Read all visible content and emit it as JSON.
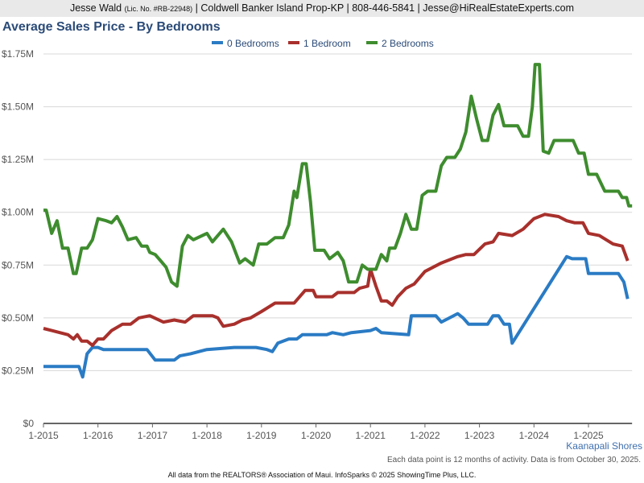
{
  "header": {
    "name": "Jesse Wald",
    "license": "(Lic. No. #RB-22948)",
    "rest": "| Coldwell Banker Island Prop-KP | 808-446-5841 | Jesse@HiRealEstateExperts.com"
  },
  "area_label": "Kaanapali Shores",
  "note": "Each data point is 12 months of activity. Data is from October 30, 2025.",
  "footer": "All data from the REALTORS® Association of Maui. InfoSparks © 2025 ShowingTime Plus, LLC.",
  "chart_data": {
    "type": "line",
    "title": "Average Sales Price - By Bedrooms",
    "xlabel": "",
    "ylabel": "",
    "xlim": [
      2015,
      2025.8
    ],
    "ylim": [
      0,
      1.75
    ],
    "grid": true,
    "legend_placement": "top-center",
    "x_ticks": [
      {
        "v": 2015,
        "label": "1-2015"
      },
      {
        "v": 2016,
        "label": "1-2016"
      },
      {
        "v": 2017,
        "label": "1-2017"
      },
      {
        "v": 2018,
        "label": "1-2018"
      },
      {
        "v": 2019,
        "label": "1-2019"
      },
      {
        "v": 2020,
        "label": "1-2020"
      },
      {
        "v": 2021,
        "label": "1-2021"
      },
      {
        "v": 2022,
        "label": "1-2022"
      },
      {
        "v": 2023,
        "label": "1-2023"
      },
      {
        "v": 2024,
        "label": "1-2024"
      },
      {
        "v": 2025,
        "label": "1-2025"
      }
    ],
    "y_ticks": [
      {
        "v": 0,
        "label": "$0"
      },
      {
        "v": 0.25,
        "label": "$0.25M"
      },
      {
        "v": 0.5,
        "label": "$0.50M"
      },
      {
        "v": 0.75,
        "label": "$0.75M"
      },
      {
        "v": 1.0,
        "label": "$1.00M"
      },
      {
        "v": 1.25,
        "label": "$1.25M"
      },
      {
        "v": 1.5,
        "label": "$1.50M"
      },
      {
        "v": 1.75,
        "label": "$1.75M"
      }
    ],
    "series": [
      {
        "name": "0 Bedrooms",
        "color": "#2a7bc4",
        "points": [
          [
            2015,
            0.27
          ],
          [
            2015.65,
            0.27
          ],
          [
            2015.72,
            0.22
          ],
          [
            2015.8,
            0.33
          ],
          [
            2015.9,
            0.36
          ],
          [
            2016.0,
            0.36
          ],
          [
            2016.1,
            0.35
          ],
          [
            2016.9,
            0.35
          ],
          [
            2017.05,
            0.3
          ],
          [
            2017.4,
            0.3
          ],
          [
            2017.5,
            0.32
          ],
          [
            2017.7,
            0.33
          ],
          [
            2018.0,
            0.35
          ],
          [
            2018.5,
            0.36
          ],
          [
            2018.9,
            0.36
          ],
          [
            2019.1,
            0.35
          ],
          [
            2019.2,
            0.34
          ],
          [
            2019.3,
            0.38
          ],
          [
            2019.5,
            0.4
          ],
          [
            2019.65,
            0.4
          ],
          [
            2019.75,
            0.42
          ],
          [
            2020.2,
            0.42
          ],
          [
            2020.3,
            0.43
          ],
          [
            2020.5,
            0.42
          ],
          [
            2020.65,
            0.43
          ],
          [
            2021.0,
            0.44
          ],
          [
            2021.1,
            0.45
          ],
          [
            2021.2,
            0.43
          ],
          [
            2021.7,
            0.42
          ],
          [
            2021.75,
            0.51
          ],
          [
            2022.2,
            0.51
          ],
          [
            2022.3,
            0.48
          ],
          [
            2022.45,
            0.5
          ],
          [
            2022.6,
            0.52
          ],
          [
            2022.7,
            0.5
          ],
          [
            2022.8,
            0.47
          ],
          [
            2023.15,
            0.47
          ],
          [
            2023.25,
            0.51
          ],
          [
            2023.35,
            0.51
          ],
          [
            2023.45,
            0.47
          ],
          [
            2023.55,
            0.47
          ],
          [
            2023.6,
            0.38
          ],
          [
            2024.6,
            0.79
          ],
          [
            2024.7,
            0.78
          ],
          [
            2024.95,
            0.78
          ],
          [
            2025.0,
            0.71
          ],
          [
            2025.55,
            0.71
          ],
          [
            2025.65,
            0.67
          ],
          [
            2025.72,
            0.59
          ]
        ]
      },
      {
        "name": "1 Bedroom",
        "color": "#a8302c",
        "points": [
          [
            2015,
            0.45
          ],
          [
            2015.15,
            0.44
          ],
          [
            2015.3,
            0.43
          ],
          [
            2015.45,
            0.42
          ],
          [
            2015.55,
            0.4
          ],
          [
            2015.62,
            0.42
          ],
          [
            2015.7,
            0.39
          ],
          [
            2015.8,
            0.39
          ],
          [
            2015.9,
            0.37
          ],
          [
            2016.0,
            0.4
          ],
          [
            2016.1,
            0.4
          ],
          [
            2016.25,
            0.44
          ],
          [
            2016.45,
            0.47
          ],
          [
            2016.6,
            0.47
          ],
          [
            2016.75,
            0.5
          ],
          [
            2016.95,
            0.51
          ],
          [
            2017.2,
            0.48
          ],
          [
            2017.4,
            0.49
          ],
          [
            2017.6,
            0.48
          ],
          [
            2017.75,
            0.51
          ],
          [
            2018.1,
            0.51
          ],
          [
            2018.2,
            0.5
          ],
          [
            2018.3,
            0.46
          ],
          [
            2018.5,
            0.47
          ],
          [
            2018.65,
            0.49
          ],
          [
            2018.8,
            0.5
          ],
          [
            2019.0,
            0.53
          ],
          [
            2019.25,
            0.57
          ],
          [
            2019.6,
            0.57
          ],
          [
            2019.8,
            0.63
          ],
          [
            2019.95,
            0.63
          ],
          [
            2020.0,
            0.6
          ],
          [
            2020.3,
            0.6
          ],
          [
            2020.4,
            0.62
          ],
          [
            2020.7,
            0.62
          ],
          [
            2020.8,
            0.64
          ],
          [
            2020.95,
            0.65
          ],
          [
            2021.0,
            0.73
          ],
          [
            2021.1,
            0.65
          ],
          [
            2021.2,
            0.58
          ],
          [
            2021.3,
            0.58
          ],
          [
            2021.4,
            0.56
          ],
          [
            2021.5,
            0.6
          ],
          [
            2021.65,
            0.64
          ],
          [
            2021.8,
            0.66
          ],
          [
            2022.0,
            0.72
          ],
          [
            2022.3,
            0.76
          ],
          [
            2022.6,
            0.79
          ],
          [
            2022.75,
            0.8
          ],
          [
            2022.9,
            0.8
          ],
          [
            2023.1,
            0.85
          ],
          [
            2023.25,
            0.86
          ],
          [
            2023.35,
            0.9
          ],
          [
            2023.6,
            0.89
          ],
          [
            2023.8,
            0.92
          ],
          [
            2024.0,
            0.97
          ],
          [
            2024.2,
            0.99
          ],
          [
            2024.45,
            0.98
          ],
          [
            2024.6,
            0.96
          ],
          [
            2024.75,
            0.95
          ],
          [
            2024.9,
            0.95
          ],
          [
            2025.0,
            0.9
          ],
          [
            2025.2,
            0.89
          ],
          [
            2025.45,
            0.85
          ],
          [
            2025.62,
            0.84
          ],
          [
            2025.72,
            0.77
          ]
        ]
      },
      {
        "name": "2 Bedrooms",
        "color": "#3e8c2e",
        "points": [
          [
            2015,
            1.01
          ],
          [
            2015.05,
            1.01
          ],
          [
            2015.15,
            0.9
          ],
          [
            2015.25,
            0.96
          ],
          [
            2015.35,
            0.83
          ],
          [
            2015.45,
            0.83
          ],
          [
            2015.55,
            0.71
          ],
          [
            2015.6,
            0.71
          ],
          [
            2015.7,
            0.83
          ],
          [
            2015.8,
            0.83
          ],
          [
            2015.9,
            0.87
          ],
          [
            2016.0,
            0.97
          ],
          [
            2016.15,
            0.96
          ],
          [
            2016.25,
            0.95
          ],
          [
            2016.35,
            0.98
          ],
          [
            2016.45,
            0.93
          ],
          [
            2016.55,
            0.87
          ],
          [
            2016.7,
            0.88
          ],
          [
            2016.8,
            0.84
          ],
          [
            2016.9,
            0.84
          ],
          [
            2016.95,
            0.81
          ],
          [
            2017.05,
            0.8
          ],
          [
            2017.15,
            0.77
          ],
          [
            2017.25,
            0.74
          ],
          [
            2017.35,
            0.67
          ],
          [
            2017.45,
            0.65
          ],
          [
            2017.55,
            0.84
          ],
          [
            2017.65,
            0.89
          ],
          [
            2017.75,
            0.87
          ],
          [
            2018.0,
            0.9
          ],
          [
            2018.1,
            0.86
          ],
          [
            2018.2,
            0.89
          ],
          [
            2018.3,
            0.92
          ],
          [
            2018.45,
            0.86
          ],
          [
            2018.6,
            0.76
          ],
          [
            2018.7,
            0.78
          ],
          [
            2018.85,
            0.75
          ],
          [
            2018.95,
            0.85
          ],
          [
            2019.1,
            0.85
          ],
          [
            2019.25,
            0.88
          ],
          [
            2019.4,
            0.88
          ],
          [
            2019.5,
            0.94
          ],
          [
            2019.6,
            1.1
          ],
          [
            2019.65,
            1.07
          ],
          [
            2019.75,
            1.23
          ],
          [
            2019.82,
            1.23
          ],
          [
            2019.9,
            1.05
          ],
          [
            2019.98,
            0.82
          ],
          [
            2020.15,
            0.82
          ],
          [
            2020.25,
            0.78
          ],
          [
            2020.4,
            0.81
          ],
          [
            2020.5,
            0.77
          ],
          [
            2020.6,
            0.67
          ],
          [
            2020.75,
            0.67
          ],
          [
            2020.85,
            0.75
          ],
          [
            2020.95,
            0.73
          ],
          [
            2021.1,
            0.73
          ],
          [
            2021.2,
            0.8
          ],
          [
            2021.3,
            0.77
          ],
          [
            2021.35,
            0.83
          ],
          [
            2021.45,
            0.83
          ],
          [
            2021.55,
            0.9
          ],
          [
            2021.65,
            0.99
          ],
          [
            2021.75,
            0.92
          ],
          [
            2021.85,
            0.92
          ],
          [
            2021.95,
            1.08
          ],
          [
            2022.05,
            1.1
          ],
          [
            2022.2,
            1.1
          ],
          [
            2022.3,
            1.22
          ],
          [
            2022.4,
            1.26
          ],
          [
            2022.55,
            1.26
          ],
          [
            2022.65,
            1.3
          ],
          [
            2022.75,
            1.38
          ],
          [
            2022.85,
            1.55
          ],
          [
            2022.95,
            1.44
          ],
          [
            2023.05,
            1.34
          ],
          [
            2023.15,
            1.34
          ],
          [
            2023.25,
            1.46
          ],
          [
            2023.35,
            1.51
          ],
          [
            2023.45,
            1.41
          ],
          [
            2023.7,
            1.41
          ],
          [
            2023.8,
            1.36
          ],
          [
            2023.9,
            1.36
          ],
          [
            2023.97,
            1.5
          ],
          [
            2024.02,
            1.7
          ],
          [
            2024.1,
            1.7
          ],
          [
            2024.17,
            1.29
          ],
          [
            2024.27,
            1.28
          ],
          [
            2024.37,
            1.34
          ],
          [
            2024.72,
            1.34
          ],
          [
            2024.82,
            1.28
          ],
          [
            2024.92,
            1.28
          ],
          [
            2025.0,
            1.18
          ],
          [
            2025.15,
            1.18
          ],
          [
            2025.3,
            1.1
          ],
          [
            2025.55,
            1.1
          ],
          [
            2025.62,
            1.07
          ],
          [
            2025.7,
            1.07
          ],
          [
            2025.74,
            1.03
          ],
          [
            2025.8,
            1.03
          ]
        ]
      }
    ]
  }
}
